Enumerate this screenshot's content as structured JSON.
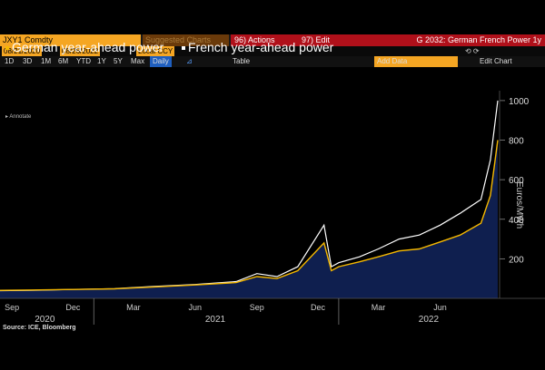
{
  "toolbar": {
    "ticker": "JXY1 Comdty",
    "suggested": "Suggested Charts",
    "actions": "96) Actions",
    "edit": "97) Edit",
    "title": "G 2032: German French Power 1y",
    "date_from": "08/21/2020",
    "date_to": "08/26/2022",
    "currency": "Local CCY",
    "ranges": [
      "1D",
      "3D",
      "1M",
      "6M",
      "YTD",
      "1Y",
      "5Y",
      "Max"
    ],
    "frequency": "Daily",
    "table": "Table",
    "add_data": "Add Data",
    "edit_chart": "Edit Chart"
  },
  "annotate": "Annotate",
  "source": "Source: ICE, Bloomberg",
  "colors": {
    "german": "#f5b800",
    "french": "#ffffff",
    "area": "#0f1f4f"
  },
  "chart_data": {
    "type": "line",
    "ylabel": "Euros/MWh",
    "ylim": [
      0,
      1050
    ],
    "yticks": [
      200,
      400,
      600,
      800,
      1000
    ],
    "month_ticks": [
      "Sep",
      "Dec",
      "Mar",
      "Jun",
      "Sep",
      "Dec",
      "Mar",
      "Jun"
    ],
    "year_labels": [
      "2020",
      "2021",
      "2022"
    ],
    "x": [
      "2020-08",
      "2020-10",
      "2020-12",
      "2021-02",
      "2021-04",
      "2021-06",
      "2021-08",
      "2021-09",
      "2021-10",
      "2021-11",
      "2021-12-10",
      "2021-12-21",
      "2022-01",
      "2022-02",
      "2022-03",
      "2022-04",
      "2022-05",
      "2022-06",
      "2022-07",
      "2022-08-01",
      "2022-08-15",
      "2022-08-26"
    ],
    "series": [
      {
        "name": "German year-ahead power",
        "values": [
          40,
          42,
          45,
          48,
          58,
          68,
          80,
          110,
          100,
          140,
          280,
          140,
          160,
          185,
          210,
          240,
          250,
          285,
          320,
          380,
          520,
          800
        ]
      },
      {
        "name": "French year-ahead power",
        "values": [
          38,
          41,
          45,
          49,
          60,
          70,
          85,
          125,
          110,
          160,
          370,
          160,
          180,
          210,
          250,
          300,
          320,
          370,
          430,
          500,
          700,
          1000
        ]
      }
    ]
  }
}
